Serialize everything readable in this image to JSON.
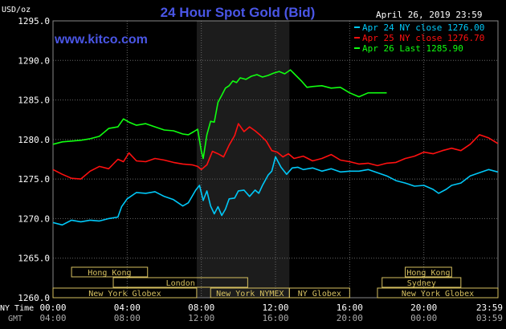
{
  "header": {
    "title": "24 Hour Spot Gold (Bid)",
    "unit": "USD/oz",
    "date": "April 26, 2019 23:59",
    "site": "www.kitco.com"
  },
  "colors": {
    "background": "#000000",
    "title": "#4a56e6",
    "axis_text": "#ffffff",
    "grid": "#666666",
    "ny_session": "#1c1c1c",
    "market_box": "#d6c060",
    "cyan": "#00c8f8",
    "red": "#ff1010",
    "green": "#10ff10"
  },
  "bottom_axis": {
    "ny_time_label": "NY Time",
    "gmt_label": "GMT"
  },
  "chart_data": {
    "type": "line",
    "title": "24 Hour Spot Gold (Bid)",
    "ylabel": "USD/oz",
    "ylim": [
      1260,
      1295
    ],
    "yticks": [
      "1260.0",
      "1265.0",
      "1270.0",
      "1275.0",
      "1280.0",
      "1285.0",
      "1290.0",
      "1295.0"
    ],
    "xlim": [
      0,
      24
    ],
    "x_unit": "hours (NY Time)",
    "ny_time_ticks": [
      "00:00",
      "04:00",
      "08:00",
      "12:00",
      "16:00",
      "20:00",
      "23:59"
    ],
    "gmt_ticks": [
      "04:00",
      "08:00",
      "12:00",
      "16:00",
      "20:00",
      "00:00",
      "03:59"
    ],
    "grid": true,
    "legend_position": "top-right",
    "ny_session": [
      7.75,
      12.75
    ],
    "markets": [
      {
        "label": "Hong Kong",
        "start": 1.0,
        "end": 5.1,
        "row": 0
      },
      {
        "label": "Hong Kong",
        "start": 19.0,
        "end": 21.5,
        "row": 0
      },
      {
        "label": "London",
        "start": 3.25,
        "end": 10.5,
        "row": 1
      },
      {
        "label": "Sydney",
        "start": 17.75,
        "end": 22.0,
        "row": 1
      },
      {
        "label": "New York Globex",
        "start": 0.0,
        "end": 7.75,
        "row": 2
      },
      {
        "label": "New York NYMEX",
        "start": 8.5,
        "end": 12.75,
        "row": 2
      },
      {
        "label": "NY Globex",
        "start": 12.75,
        "end": 16.0,
        "row": 2
      },
      {
        "label": "New York Globex",
        "start": 17.5,
        "end": 24.0,
        "row": 2
      }
    ],
    "series": [
      {
        "name": "Apr 24 NY close 1276.00",
        "color": "#00c8f8",
        "x": [
          0,
          0.5,
          1.0,
          1.5,
          2.0,
          2.5,
          3.0,
          3.5,
          3.7,
          4.0,
          4.5,
          5.0,
          5.5,
          6.0,
          6.5,
          7.0,
          7.3,
          7.7,
          7.9,
          8.1,
          8.3,
          8.5,
          8.7,
          8.9,
          9.1,
          9.3,
          9.5,
          9.8,
          10.0,
          10.3,
          10.6,
          10.9,
          11.1,
          11.3,
          11.6,
          11.8,
          12.0,
          12.3,
          12.6,
          12.9,
          13.2,
          13.5,
          14.0,
          14.5,
          15.0,
          15.5,
          16.0,
          16.5,
          17.0,
          17.5,
          18.0,
          18.5,
          19.0,
          19.5,
          20.0,
          20.5,
          20.8,
          21.2,
          21.5,
          22.0,
          22.5,
          23.0,
          23.5,
          23.99
        ],
        "y": [
          1269.5,
          1269.2,
          1269.8,
          1269.6,
          1269.8,
          1269.7,
          1270.0,
          1270.2,
          1271.5,
          1272.5,
          1273.3,
          1273.2,
          1273.4,
          1272.8,
          1272.4,
          1271.6,
          1272.0,
          1273.6,
          1274.2,
          1272.3,
          1273.5,
          1271.6,
          1270.6,
          1271.5,
          1270.4,
          1271.2,
          1272.5,
          1272.6,
          1273.5,
          1273.6,
          1272.8,
          1273.6,
          1273.2,
          1274.2,
          1275.5,
          1276.0,
          1277.8,
          1276.5,
          1275.6,
          1276.4,
          1276.5,
          1276.2,
          1276.4,
          1276.0,
          1276.3,
          1275.9,
          1276.0,
          1276.0,
          1276.2,
          1275.8,
          1275.4,
          1274.8,
          1274.5,
          1274.1,
          1274.2,
          1273.7,
          1273.2,
          1273.7,
          1274.2,
          1274.5,
          1275.4,
          1275.8,
          1276.2,
          1275.9
        ]
      },
      {
        "name": "Apr 25 NY close 1276.70",
        "color": "#ff1010",
        "x": [
          0,
          0.5,
          1.0,
          1.5,
          2.0,
          2.5,
          3.0,
          3.5,
          3.8,
          4.1,
          4.5,
          5.0,
          5.5,
          6.0,
          6.5,
          7.0,
          7.5,
          7.8,
          8.0,
          8.3,
          8.6,
          8.9,
          9.2,
          9.5,
          9.8,
          10.0,
          10.3,
          10.6,
          10.9,
          11.2,
          11.5,
          11.8,
          12.1,
          12.4,
          12.7,
          13.0,
          13.5,
          14.0,
          14.5,
          15.0,
          15.5,
          16.0,
          16.5,
          17.0,
          17.5,
          18.0,
          18.5,
          19.0,
          19.5,
          20.0,
          20.5,
          21.0,
          21.5,
          22.0,
          22.5,
          23.0,
          23.5,
          23.99
        ],
        "y": [
          1276.2,
          1275.6,
          1275.1,
          1275.0,
          1276.0,
          1276.6,
          1276.3,
          1277.5,
          1277.2,
          1278.3,
          1277.3,
          1277.2,
          1277.6,
          1277.4,
          1277.1,
          1276.9,
          1276.8,
          1276.6,
          1276.2,
          1276.8,
          1278.5,
          1278.2,
          1277.8,
          1279.3,
          1280.5,
          1282.0,
          1281.0,
          1281.6,
          1281.1,
          1280.5,
          1279.8,
          1278.6,
          1278.4,
          1277.8,
          1278.2,
          1277.6,
          1277.9,
          1277.3,
          1277.6,
          1278.1,
          1277.4,
          1277.2,
          1276.9,
          1277.0,
          1276.7,
          1277.0,
          1277.1,
          1277.6,
          1277.9,
          1278.4,
          1278.2,
          1278.6,
          1278.9,
          1278.6,
          1279.4,
          1280.6,
          1280.2,
          1279.5
        ]
      },
      {
        "name": "Apr 26 Last 1285.90",
        "color": "#10ff10",
        "x": [
          0,
          0.5,
          1.0,
          1.5,
          2.0,
          2.5,
          3.0,
          3.5,
          3.8,
          4.1,
          4.5,
          5.0,
          5.5,
          6.0,
          6.5,
          7.0,
          7.3,
          7.6,
          7.8,
          8.0,
          8.1,
          8.3,
          8.5,
          8.7,
          8.9,
          9.1,
          9.3,
          9.5,
          9.7,
          9.9,
          10.1,
          10.4,
          10.7,
          11.0,
          11.3,
          11.6,
          11.9,
          12.2,
          12.5,
          12.8,
          13.1,
          13.4,
          13.7,
          14.0,
          14.5,
          15.0,
          15.5,
          16.0,
          16.5,
          17.0,
          17.5,
          18.0
        ],
        "y": [
          1279.4,
          1279.7,
          1279.8,
          1279.9,
          1280.1,
          1280.4,
          1281.4,
          1281.6,
          1282.6,
          1282.2,
          1281.8,
          1282.0,
          1281.6,
          1281.2,
          1281.1,
          1280.7,
          1280.6,
          1281.0,
          1281.3,
          1278.5,
          1277.6,
          1280.6,
          1282.3,
          1282.2,
          1284.7,
          1285.6,
          1286.5,
          1286.8,
          1287.4,
          1287.2,
          1287.8,
          1287.6,
          1288.0,
          1288.2,
          1287.9,
          1288.1,
          1288.4,
          1288.6,
          1288.3,
          1288.8,
          1288.1,
          1287.4,
          1286.6,
          1286.7,
          1286.8,
          1286.5,
          1286.6,
          1285.9,
          1285.4,
          1285.9,
          1285.9,
          1285.9
        ]
      }
    ]
  }
}
